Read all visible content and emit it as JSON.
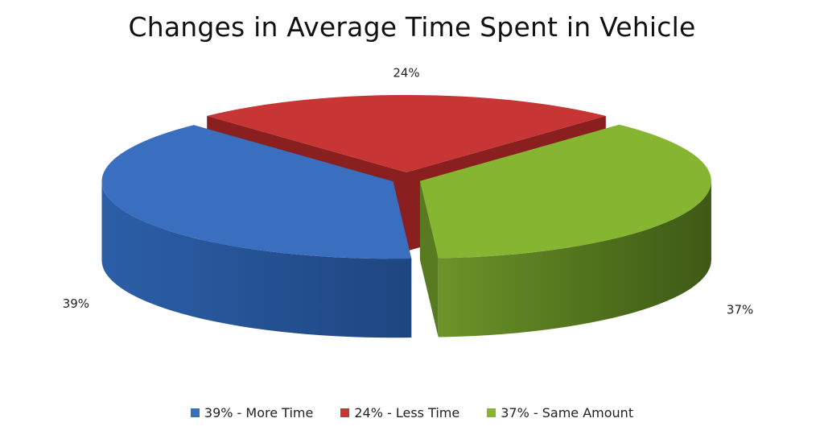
{
  "chart_data": {
    "type": "pie",
    "title": "Changes in Average Time Spent in Vehicle",
    "style": "3d-exploded",
    "legend_position": "bottom",
    "slices": [
      {
        "label": "39% - More Time",
        "value": 39,
        "data_label": "39%",
        "color": "#3a6fbf",
        "side_color": "#25508f"
      },
      {
        "label": "24% - Less Time",
        "value": 24,
        "data_label": "24%",
        "color": "#c73535",
        "side_color": "#8a1f1f"
      },
      {
        "label": "37% - Same Amount",
        "value": 37,
        "data_label": "37%",
        "color": "#86b531",
        "side_color": "#587a20"
      }
    ]
  }
}
